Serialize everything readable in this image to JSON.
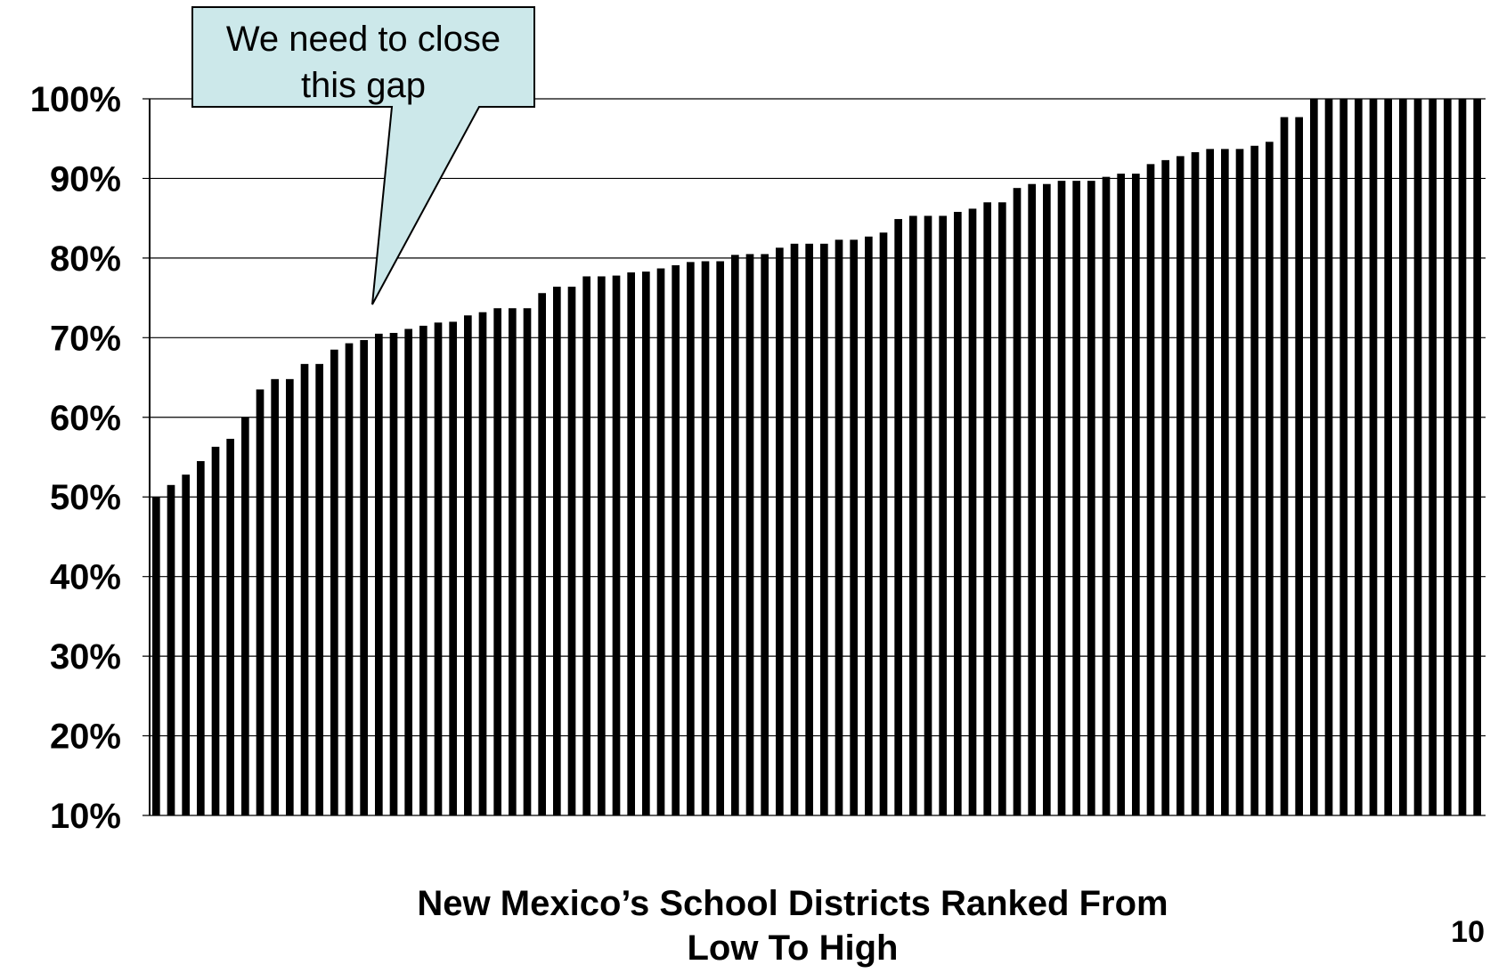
{
  "chart_data": {
    "type": "bar",
    "title": "",
    "xlabel_line1": "New Mexico’s School Districts Ranked From",
    "xlabel_line2": "Low To High",
    "ylabel": "",
    "ylim": [
      10,
      100
    ],
    "yticks": [
      "10%",
      "20%",
      "30%",
      "40%",
      "50%",
      "60%",
      "70%",
      "80%",
      "90%",
      "100%"
    ],
    "grid": true,
    "bar_color": "#000000",
    "values": [
      50,
      51.5,
      52.8,
      54.5,
      56.3,
      57.3,
      60,
      63.5,
      64.8,
      64.8,
      66.7,
      66.7,
      68.5,
      69.3,
      69.7,
      70.5,
      70.6,
      71.1,
      71.5,
      71.9,
      72,
      72.8,
      73.2,
      73.7,
      73.7,
      73.7,
      75.6,
      76.4,
      76.4,
      77.7,
      77.7,
      77.8,
      78.2,
      78.3,
      78.7,
      79.1,
      79.5,
      79.6,
      79.6,
      80.4,
      80.5,
      80.5,
      81.3,
      81.8,
      81.8,
      81.8,
      82.3,
      82.3,
      82.7,
      83.2,
      84.9,
      85.3,
      85.3,
      85.3,
      85.8,
      86.2,
      87,
      87,
      88.8,
      89.3,
      89.3,
      89.7,
      89.7,
      89.7,
      90.2,
      90.6,
      90.6,
      91.8,
      92.3,
      92.8,
      93.3,
      93.7,
      93.7,
      93.7,
      94.1,
      94.6,
      97.7,
      97.7,
      100,
      100,
      100,
      100,
      100,
      100,
      100,
      100,
      100,
      100,
      100,
      100
    ]
  },
  "annotation": {
    "line1": "We need to close",
    "line2": "this gap",
    "fill": "#cce8ea"
  },
  "page_number": "10"
}
